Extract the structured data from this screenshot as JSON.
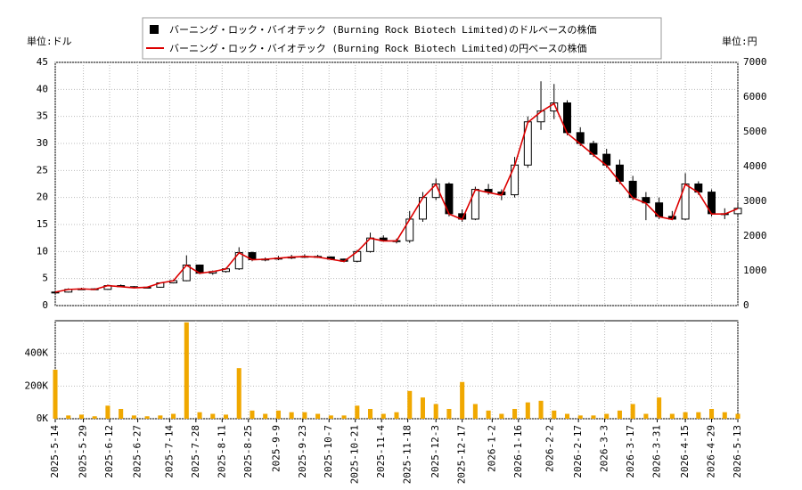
{
  "chart_data": [
    {
      "type": "candlestick",
      "unit_label": "単位:ドル",
      "y2_unit_label": "単位:円",
      "name": "バーニング・ロック・バイオテック (Burning Rock Biotech Limited)のドルベースの株価",
      "color": "#000000",
      "x": [
        "2025-5-14",
        "2025-5-21",
        "2025-5-28",
        "2025-6-4",
        "2025-6-11",
        "2025-6-18",
        "2025-6-25",
        "2025-7-2",
        "2025-7-9",
        "2025-7-16",
        "2025-7-23",
        "2025-7-30",
        "2025-8-6",
        "2025-8-13",
        "2025-8-20",
        "2025-8-27",
        "2025-9-3",
        "2025-9-10",
        "2025-9-17",
        "2025-9-24",
        "2025-10-1",
        "2025-10-8",
        "2025-10-15",
        "2025-10-22",
        "2025-10-29",
        "2025-11-5",
        "2025-11-12",
        "2025-11-19",
        "2025-11-26",
        "2025-12-3",
        "2025-12-10",
        "2025-12-17",
        "2025-12-24",
        "2025-12-31",
        "2026-1-7",
        "2026-1-14",
        "2026-1-21",
        "2026-1-28",
        "2026-2-4",
        "2026-2-11",
        "2026-2-18",
        "2026-2-25",
        "2026-3-4",
        "2026-3-11",
        "2026-3-18",
        "2026-3-25",
        "2026-4-1",
        "2026-4-8",
        "2026-4-15",
        "2026-4-22",
        "2026-4-29",
        "2026-5-6",
        "2026-5-13"
      ],
      "xlim": [
        "2025-5-14",
        "2026-5-13"
      ],
      "xticks": [
        "2025-5-14",
        "2025-5-29",
        "2025-6-12",
        "2025-6-27",
        "2025-7-14",
        "2025-7-28",
        "2025-8-11",
        "2025-8-25",
        "2025-9-9",
        "2025-9-23",
        "2025-10-7",
        "2025-10-21",
        "2025-11-4",
        "2025-11-18",
        "2025-12-3",
        "2025-12-17",
        "2026-1-2",
        "2026-1-16",
        "2026-2-2",
        "2026-2-17",
        "2026-3-3",
        "2026-3-17",
        "2026-3-31",
        "2026-4-15",
        "2026-4-29",
        "2026-5-13"
      ],
      "open": [
        2.4,
        2.5,
        3.0,
        3.1,
        3.0,
        3.7,
        3.5,
        3.3,
        3.4,
        4.2,
        4.6,
        7.5,
        6.0,
        6.3,
        6.8,
        9.8,
        8.5,
        8.6,
        8.8,
        9.0,
        9.1,
        9.0,
        8.6,
        8.2,
        10.0,
        12.5,
        12.0,
        12.0,
        16.0,
        20.0,
        22.5,
        17.0,
        16.0,
        21.5,
        21.0,
        20.5,
        26.0,
        34.0,
        36.0,
        37.5,
        32.0,
        30.0,
        28.0,
        26.0,
        23.0,
        20.0,
        19.0,
        16.5,
        16.0,
        22.5,
        21.0,
        17.0,
        17.0
      ],
      "high": [
        2.7,
        3.2,
        3.3,
        3.2,
        3.9,
        3.9,
        3.6,
        3.5,
        4.3,
        4.8,
        9.3,
        7.6,
        6.5,
        7.0,
        10.8,
        10.0,
        8.9,
        9.2,
        9.4,
        9.5,
        9.4,
        9.1,
        8.7,
        10.3,
        13.5,
        13.0,
        12.4,
        17.5,
        21.0,
        23.5,
        22.8,
        17.8,
        22.0,
        22.5,
        21.5,
        27.5,
        35.0,
        41.5,
        41.0,
        38.0,
        33.0,
        30.5,
        29.0,
        27.0,
        24.0,
        21.0,
        20.0,
        17.5,
        24.5,
        23.0,
        21.5,
        18.0,
        19.0
      ],
      "low": [
        2.3,
        2.4,
        2.9,
        2.9,
        2.9,
        3.4,
        3.2,
        3.2,
        3.3,
        4.1,
        4.5,
        5.8,
        5.7,
        6.1,
        6.6,
        8.2,
        8.2,
        8.4,
        8.6,
        8.8,
        8.8,
        8.4,
        8.0,
        8.0,
        9.8,
        11.8,
        11.5,
        11.6,
        15.5,
        19.5,
        16.5,
        15.5,
        15.8,
        20.5,
        19.5,
        20.0,
        25.5,
        32.5,
        34.5,
        31.5,
        29.5,
        27.5,
        25.5,
        22.5,
        19.5,
        15.8,
        16.0,
        15.8,
        15.8,
        20.5,
        16.5,
        16.0,
        16.5
      ],
      "close": [
        2.5,
        3.0,
        3.1,
        3.0,
        3.7,
        3.5,
        3.3,
        3.4,
        4.2,
        4.6,
        7.5,
        6.0,
        6.3,
        6.8,
        9.8,
        8.5,
        8.6,
        8.8,
        9.0,
        9.1,
        9.0,
        8.6,
        8.2,
        10.0,
        12.5,
        12.0,
        12.0,
        16.0,
        20.0,
        22.5,
        17.0,
        16.0,
        21.5,
        21.0,
        20.5,
        26.0,
        34.0,
        36.0,
        37.5,
        32.0,
        30.0,
        28.0,
        26.0,
        23.0,
        20.0,
        19.0,
        16.5,
        16.0,
        22.5,
        21.0,
        17.0,
        17.0,
        18.0
      ],
      "ylim": [
        0,
        45
      ],
      "yticks": [
        0,
        5,
        10,
        15,
        20,
        25,
        30,
        35,
        40,
        45
      ],
      "y2lim": [
        0,
        7000
      ],
      "y2ticks": [
        0,
        1000,
        2000,
        3000,
        4000,
        5000,
        6000,
        7000
      ],
      "grid": true,
      "legend": "top",
      "series": [
        {
          "name": "バーニング・ロック・バイオテック (Burning Rock Biotech Limited)の円ベースの株価",
          "color": "#dd0000",
          "axis": "y2",
          "values": [
            388,
            465,
            481,
            465,
            574,
            543,
            512,
            527,
            651,
            713,
            1163,
            930,
            977,
            1054,
            1519,
            1318,
            1333,
            1364,
            1395,
            1411,
            1395,
            1333,
            1271,
            1550,
            1938,
            1860,
            1860,
            2480,
            3100,
            3488,
            2635,
            2480,
            3333,
            3255,
            3178,
            4030,
            5270,
            5580,
            5813,
            4960,
            4650,
            4340,
            4030,
            3565,
            3100,
            2945,
            2558,
            2480,
            3488,
            3255,
            2635,
            2635,
            2790
          ]
        }
      ]
    },
    {
      "type": "bar",
      "color": "#f0a800",
      "values": [
        300000,
        20000,
        25000,
        15000,
        80000,
        60000,
        20000,
        15000,
        20000,
        30000,
        590000,
        40000,
        30000,
        25000,
        310000,
        50000,
        30000,
        50000,
        40000,
        40000,
        30000,
        20000,
        20000,
        80000,
        60000,
        30000,
        40000,
        170000,
        130000,
        90000,
        60000,
        225000,
        90000,
        50000,
        30000,
        60000,
        100000,
        110000,
        50000,
        30000,
        20000,
        20000,
        30000,
        50000,
        90000,
        30000,
        130000,
        30000,
        40000,
        40000,
        60000,
        40000,
        30000
      ],
      "ylim": [
        0,
        600000
      ],
      "yticks": [
        {
          "value": 0,
          "label": "0K"
        },
        {
          "value": 200000,
          "label": "200K"
        },
        {
          "value": 400000,
          "label": "400K"
        }
      ]
    }
  ]
}
